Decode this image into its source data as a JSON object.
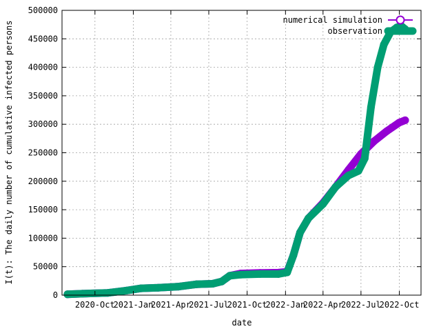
{
  "chart_data": {
    "type": "line",
    "title": "",
    "xlabel": "date",
    "ylabel": "I(t): The daily number of cumulative infected persons",
    "x_type": "date",
    "xlim": [
      "2020-07-14",
      "2022-11-22"
    ],
    "ylim": [
      0,
      500000
    ],
    "grid": true,
    "legend_position": "top-right",
    "x_ticks": [
      {
        "date": "2020-10-01",
        "label": "2020-Oct"
      },
      {
        "date": "2021-01-01",
        "label": "2021-Jan"
      },
      {
        "date": "2021-04-01",
        "label": "2021-Apr"
      },
      {
        "date": "2021-07-01",
        "label": "2021-Jul"
      },
      {
        "date": "2021-10-01",
        "label": "2021-Oct"
      },
      {
        "date": "2022-01-01",
        "label": "2022-Jan"
      },
      {
        "date": "2022-04-01",
        "label": "2022-Apr"
      },
      {
        "date": "2022-07-01",
        "label": "2022-Jul"
      },
      {
        "date": "2022-10-01",
        "label": "2022-Oct"
      }
    ],
    "y_ticks": [
      {
        "value": 0,
        "label": "0"
      },
      {
        "value": 50000,
        "label": "50000"
      },
      {
        "value": 100000,
        "label": "100000"
      },
      {
        "value": 150000,
        "label": "150000"
      },
      {
        "value": 200000,
        "label": "200000"
      },
      {
        "value": 250000,
        "label": "250000"
      },
      {
        "value": 300000,
        "label": "300000"
      },
      {
        "value": 350000,
        "label": "350000"
      },
      {
        "value": 400000,
        "label": "400000"
      },
      {
        "value": 450000,
        "label": "450000"
      },
      {
        "value": 500000,
        "label": "500000"
      }
    ],
    "series": [
      {
        "name": "numerical simulation",
        "color": "#9400d3",
        "marker": "circle",
        "points": [
          [
            "2020-07-27",
            1500
          ],
          [
            "2020-09-01",
            2500
          ],
          [
            "2020-11-01",
            4000
          ],
          [
            "2020-12-15",
            8000
          ],
          [
            "2021-01-20",
            12000
          ],
          [
            "2021-03-01",
            13000
          ],
          [
            "2021-04-20",
            15000
          ],
          [
            "2021-06-01",
            19000
          ],
          [
            "2021-07-10",
            20000
          ],
          [
            "2021-08-01",
            24000
          ],
          [
            "2021-08-20",
            34000
          ],
          [
            "2021-09-15",
            38000
          ],
          [
            "2021-11-01",
            39000
          ],
          [
            "2021-12-15",
            39500
          ],
          [
            "2022-01-05",
            41000
          ],
          [
            "2022-01-20",
            70000
          ],
          [
            "2022-02-05",
            110000
          ],
          [
            "2022-02-25",
            135000
          ],
          [
            "2022-04-01",
            162000
          ],
          [
            "2022-05-01",
            190000
          ],
          [
            "2022-06-01",
            220000
          ],
          [
            "2022-07-01",
            248000
          ],
          [
            "2022-08-01",
            270000
          ],
          [
            "2022-09-01",
            288000
          ],
          [
            "2022-10-01",
            303000
          ],
          [
            "2022-10-15",
            307000
          ]
        ]
      },
      {
        "name": "observation",
        "color": "#009e73",
        "marker": "circle",
        "points": [
          [
            "2020-07-27",
            1500
          ],
          [
            "2020-09-01",
            2500
          ],
          [
            "2020-11-01",
            4000
          ],
          [
            "2020-12-15",
            8000
          ],
          [
            "2021-01-20",
            12000
          ],
          [
            "2021-03-01",
            13000
          ],
          [
            "2021-04-20",
            15000
          ],
          [
            "2021-06-01",
            19000
          ],
          [
            "2021-07-10",
            20000
          ],
          [
            "2021-08-01",
            24000
          ],
          [
            "2021-08-20",
            34000
          ],
          [
            "2021-09-15",
            36000
          ],
          [
            "2021-11-01",
            37000
          ],
          [
            "2021-12-15",
            37000
          ],
          [
            "2022-01-05",
            40000
          ],
          [
            "2022-01-20",
            70000
          ],
          [
            "2022-02-05",
            110000
          ],
          [
            "2022-02-25",
            135000
          ],
          [
            "2022-04-01",
            160000
          ],
          [
            "2022-05-01",
            190000
          ],
          [
            "2022-06-01",
            210000
          ],
          [
            "2022-06-25",
            218000
          ],
          [
            "2022-07-10",
            240000
          ],
          [
            "2022-07-25",
            330000
          ],
          [
            "2022-08-10",
            400000
          ],
          [
            "2022-08-25",
            440000
          ],
          [
            "2022-09-10",
            462000
          ],
          [
            "2022-09-25",
            470000
          ],
          [
            "2022-10-05",
            473000
          ],
          [
            "2022-10-15",
            467000
          ]
        ]
      }
    ]
  }
}
